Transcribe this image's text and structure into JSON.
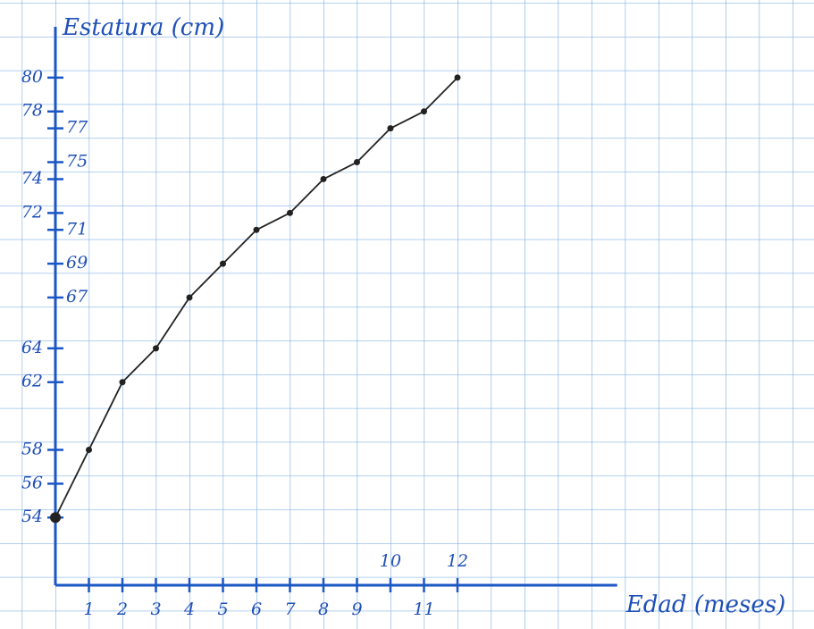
{
  "chart_data": {
    "type": "line",
    "y_label": "Estatura (cm)",
    "x_label": "Edad (meses)",
    "x": [
      0,
      1,
      2,
      3,
      4,
      5,
      6,
      7,
      8,
      9,
      10,
      11,
      12
    ],
    "series": [
      {
        "name": "Estatura",
        "color": "#222222",
        "values": [
          54,
          58,
          62,
          64,
          67,
          69,
          71,
          72,
          74,
          75,
          77,
          78,
          80
        ]
      }
    ],
    "xlim": [
      0,
      16.5
    ],
    "ylim": [
      50,
      83
    ],
    "xticks": [
      1,
      2,
      3,
      4,
      5,
      6,
      7,
      8,
      9,
      10,
      11,
      12
    ],
    "yticks": [
      54,
      56,
      58,
      62,
      64,
      67,
      69,
      71,
      72,
      74,
      75,
      77,
      78,
      80
    ],
    "grid": true
  }
}
